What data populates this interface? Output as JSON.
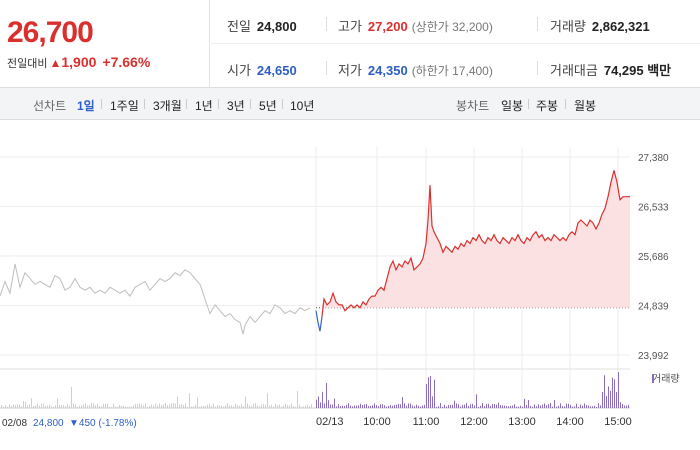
{
  "quote": {
    "price": "26,700",
    "change_label": "전일대비",
    "change_arrow": "▲",
    "change_value": "1,900",
    "change_pct": "+7.66%",
    "prev_close_label": "전일",
    "prev_close": "24,800",
    "high_label": "고가",
    "high": "27,200",
    "upper_limit": "(상한가 32,200)",
    "volume_label": "거래량",
    "volume": "2,862,321",
    "open_label": "시가",
    "open": "24,650",
    "low_label": "저가",
    "low": "24,350",
    "lower_limit": "(하한가 17,400)",
    "amount_label": "거래대금",
    "amount": "74,295 백만"
  },
  "toolbar": {
    "line_label": "선차트",
    "line_tabs": [
      "1일",
      "1주일",
      "3개월",
      "1년",
      "3년",
      "5년",
      "10년"
    ],
    "active_line_tab": "1일",
    "candle_label": "봉차트",
    "candle_tabs": [
      "일봉",
      "주봉",
      "월봉"
    ]
  },
  "chart_data": {
    "type": "line",
    "y_ticks": [
      "27,380",
      "26,533",
      "25,686",
      "24,839",
      "23,992"
    ],
    "ylim": [
      23992,
      27380
    ],
    "reference_value": 24800,
    "x_ticks": [
      "02/13",
      "10:00",
      "11:00",
      "12:00",
      "13:00",
      "14:00",
      "15:00"
    ],
    "prev_day_date": "02/08",
    "prev_day_close": "24,800",
    "prev_day_change": "▼450 (-1.78%)",
    "volume_legend": "거래량",
    "previous_day_series": [
      [
        0,
        25000
      ],
      [
        5,
        25250
      ],
      [
        10,
        25050
      ],
      [
        15,
        25550
      ],
      [
        20,
        25150
      ],
      [
        25,
        25400
      ],
      [
        30,
        25300
      ],
      [
        35,
        25200
      ],
      [
        40,
        25250
      ],
      [
        45,
        25200
      ],
      [
        50,
        25150
      ],
      [
        55,
        25350
      ],
      [
        60,
        25300
      ],
      [
        65,
        25100
      ],
      [
        70,
        25150
      ],
      [
        75,
        25300
      ],
      [
        80,
        25150
      ],
      [
        85,
        25100
      ],
      [
        90,
        25150
      ],
      [
        95,
        25050
      ],
      [
        100,
        25100
      ],
      [
        105,
        25050
      ],
      [
        110,
        25150
      ],
      [
        115,
        25100
      ],
      [
        120,
        25050
      ],
      [
        125,
        25100
      ],
      [
        130,
        25000
      ],
      [
        135,
        25150
      ],
      [
        140,
        25200
      ],
      [
        145,
        25250
      ],
      [
        150,
        25100
      ],
      [
        155,
        25200
      ],
      [
        160,
        25300
      ],
      [
        165,
        25250
      ],
      [
        170,
        25300
      ],
      [
        175,
        25400
      ],
      [
        180,
        25350
      ],
      [
        185,
        25450
      ],
      [
        190,
        25400
      ],
      [
        195,
        25300
      ],
      [
        200,
        25200
      ],
      [
        205,
        24950
      ],
      [
        210,
        24700
      ],
      [
        215,
        24850
      ],
      [
        220,
        24750
      ],
      [
        225,
        24650
      ],
      [
        230,
        24700
      ],
      [
        235,
        24600
      ],
      [
        240,
        24550
      ],
      [
        243,
        24350
      ],
      [
        245,
        24500
      ],
      [
        250,
        24650
      ],
      [
        255,
        24550
      ],
      [
        260,
        24650
      ],
      [
        265,
        24750
      ],
      [
        270,
        24700
      ],
      [
        275,
        24850
      ],
      [
        280,
        24800
      ],
      [
        285,
        24700
      ],
      [
        290,
        24750
      ],
      [
        295,
        24700
      ],
      [
        300,
        24800
      ],
      [
        305,
        24750
      ],
      [
        310,
        24800
      ]
    ],
    "today_series": [
      [
        316,
        24750
      ],
      [
        318,
        24550
      ],
      [
        320,
        24400
      ],
      [
        322,
        24650
      ],
      [
        324,
        24950
      ],
      [
        327,
        24850
      ],
      [
        330,
        24900
      ],
      [
        333,
        25050
      ],
      [
        336,
        24900
      ],
      [
        339,
        24850
      ],
      [
        342,
        24850
      ],
      [
        345,
        24750
      ],
      [
        348,
        24800
      ],
      [
        351,
        24850
      ],
      [
        354,
        24800
      ],
      [
        357,
        24850
      ],
      [
        360,
        24800
      ],
      [
        363,
        24900
      ],
      [
        366,
        24850
      ],
      [
        369,
        24950
      ],
      [
        372,
        25000
      ],
      [
        375,
        25000
      ],
      [
        378,
        25100
      ],
      [
        381,
        25150
      ],
      [
        384,
        25100
      ],
      [
        387,
        25300
      ],
      [
        390,
        25500
      ],
      [
        393,
        25600
      ],
      [
        396,
        25450
      ],
      [
        399,
        25550
      ],
      [
        402,
        25500
      ],
      [
        405,
        25600
      ],
      [
        408,
        25550
      ],
      [
        411,
        25650
      ],
      [
        414,
        25450
      ],
      [
        417,
        25500
      ],
      [
        420,
        25550
      ],
      [
        423,
        25650
      ],
      [
        426,
        25900
      ],
      [
        428,
        26300
      ],
      [
        430,
        26900
      ],
      [
        432,
        26200
      ],
      [
        434,
        26100
      ],
      [
        437,
        26000
      ],
      [
        440,
        25900
      ],
      [
        443,
        25750
      ],
      [
        446,
        25850
      ],
      [
        449,
        25800
      ],
      [
        452,
        25750
      ],
      [
        455,
        25850
      ],
      [
        458,
        25800
      ],
      [
        461,
        25900
      ],
      [
        464,
        25850
      ],
      [
        467,
        25950
      ],
      [
        470,
        25900
      ],
      [
        473,
        26000
      ],
      [
        476,
        25950
      ],
      [
        479,
        26050
      ],
      [
        482,
        25950
      ],
      [
        485,
        25900
      ],
      [
        488,
        26000
      ],
      [
        491,
        25950
      ],
      [
        494,
        26050
      ],
      [
        497,
        25950
      ],
      [
        500,
        25900
      ],
      [
        503,
        26000
      ],
      [
        506,
        25950
      ],
      [
        509,
        25900
      ],
      [
        512,
        26000
      ],
      [
        515,
        25950
      ],
      [
        518,
        26050
      ],
      [
        521,
        25950
      ],
      [
        524,
        25900
      ],
      [
        527,
        26000
      ],
      [
        530,
        25950
      ],
      [
        533,
        26050
      ],
      [
        536,
        26100
      ],
      [
        539,
        26000
      ],
      [
        542,
        26050
      ],
      [
        545,
        25950
      ],
      [
        548,
        26000
      ],
      [
        551,
        25950
      ],
      [
        554,
        26050
      ],
      [
        557,
        26000
      ],
      [
        560,
        25950
      ],
      [
        563,
        26000
      ],
      [
        566,
        25950
      ],
      [
        569,
        26050
      ],
      [
        572,
        26100
      ],
      [
        575,
        26050
      ],
      [
        578,
        26250
      ],
      [
        581,
        26300
      ],
      [
        584,
        26250
      ],
      [
        587,
        26200
      ],
      [
        590,
        26300
      ],
      [
        593,
        26250
      ],
      [
        596,
        26150
      ],
      [
        599,
        26250
      ],
      [
        602,
        26400
      ],
      [
        605,
        26500
      ],
      [
        608,
        26700
      ],
      [
        611,
        26950
      ],
      [
        614,
        27150
      ],
      [
        617,
        26950
      ],
      [
        620,
        26650
      ],
      [
        623,
        26700
      ],
      [
        630,
        26700
      ]
    ]
  }
}
